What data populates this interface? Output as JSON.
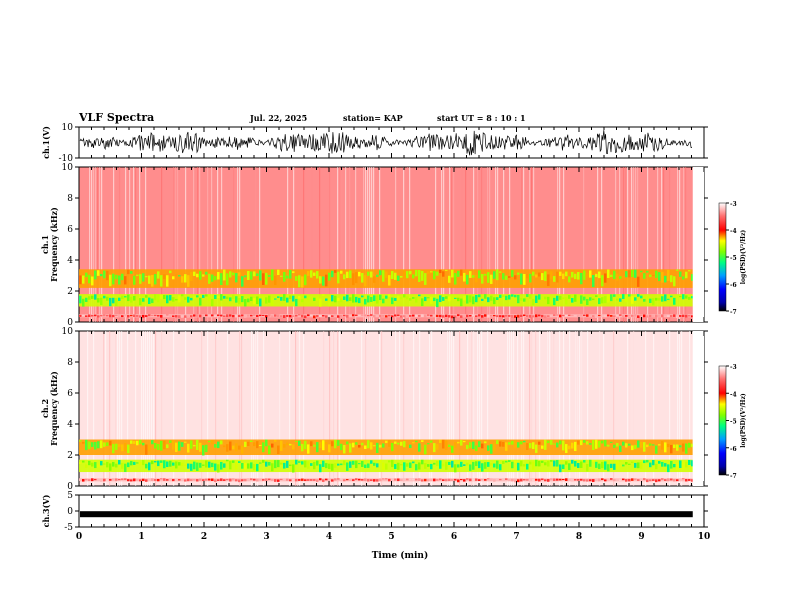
{
  "header": {
    "title": "VLF Spectra",
    "date": "Jul. 22, 2025",
    "station": "station= KAP",
    "start": "start UT =  8 : 10 : 1"
  },
  "chart_data": [
    {
      "type": "line",
      "title": "ch.1(V)",
      "ylabel": "ch.1(V)",
      "ylim": [
        -10,
        10
      ],
      "yticks": [
        "10",
        "-10"
      ],
      "description_series": "noisy waveform centered near 0 V with amplitude about +/-7 V",
      "x_range": [
        0,
        9.82
      ]
    },
    {
      "type": "heatmap",
      "ylabel": "ch.1 Frequency (kHz)",
      "ylim": [
        0,
        10
      ],
      "yticks": [
        "0",
        "2",
        "4",
        "6",
        "8",
        "10"
      ],
      "bands": [
        {
          "from_khz": 0.3,
          "to_khz": 0.5,
          "level": -3.6
        },
        {
          "from_khz": 1.0,
          "to_khz": 1.8,
          "level": -4.9
        },
        {
          "from_khz": 2.2,
          "to_khz": 3.4,
          "level": -4.6
        }
      ],
      "background_level": -3.4,
      "colorbar": {
        "label": "log(PSD)(V²/Hz)",
        "range": [
          -7,
          -3
        ],
        "ticks": [
          "-3",
          "-4",
          "-5",
          "-6",
          "-7"
        ]
      }
    },
    {
      "type": "heatmap",
      "ylabel": "ch.2 Frequency (kHz)",
      "ylim": [
        0,
        10
      ],
      "yticks": [
        "0",
        "2",
        "4",
        "6",
        "8",
        "10"
      ],
      "bands": [
        {
          "from_khz": 0.3,
          "to_khz": 0.5,
          "level": -3.6
        },
        {
          "from_khz": 0.9,
          "to_khz": 1.7,
          "level": -4.9
        },
        {
          "from_khz": 2.0,
          "to_khz": 3.0,
          "level": -4.6
        }
      ],
      "background_level": -3.1,
      "colorbar": {
        "label": "log(PSD)(V²/Hz)",
        "range": [
          -7,
          -3
        ],
        "ticks": [
          "-3",
          "-4",
          "-5",
          "-6",
          "-7"
        ]
      }
    },
    {
      "type": "line",
      "ylabel": "ch.3(V)",
      "ylim": [
        -5,
        5
      ],
      "yticks": [
        "5",
        "0",
        "-5"
      ],
      "description_series": "thick constant trace near -1 V",
      "level": -1,
      "x_range": [
        0,
        9.82
      ]
    }
  ],
  "x_axis": {
    "label": "Time (min)",
    "range": [
      0,
      10
    ],
    "ticks": [
      "0",
      "1",
      "2",
      "3",
      "4",
      "5",
      "6",
      "7",
      "8",
      "9",
      "10"
    ]
  }
}
